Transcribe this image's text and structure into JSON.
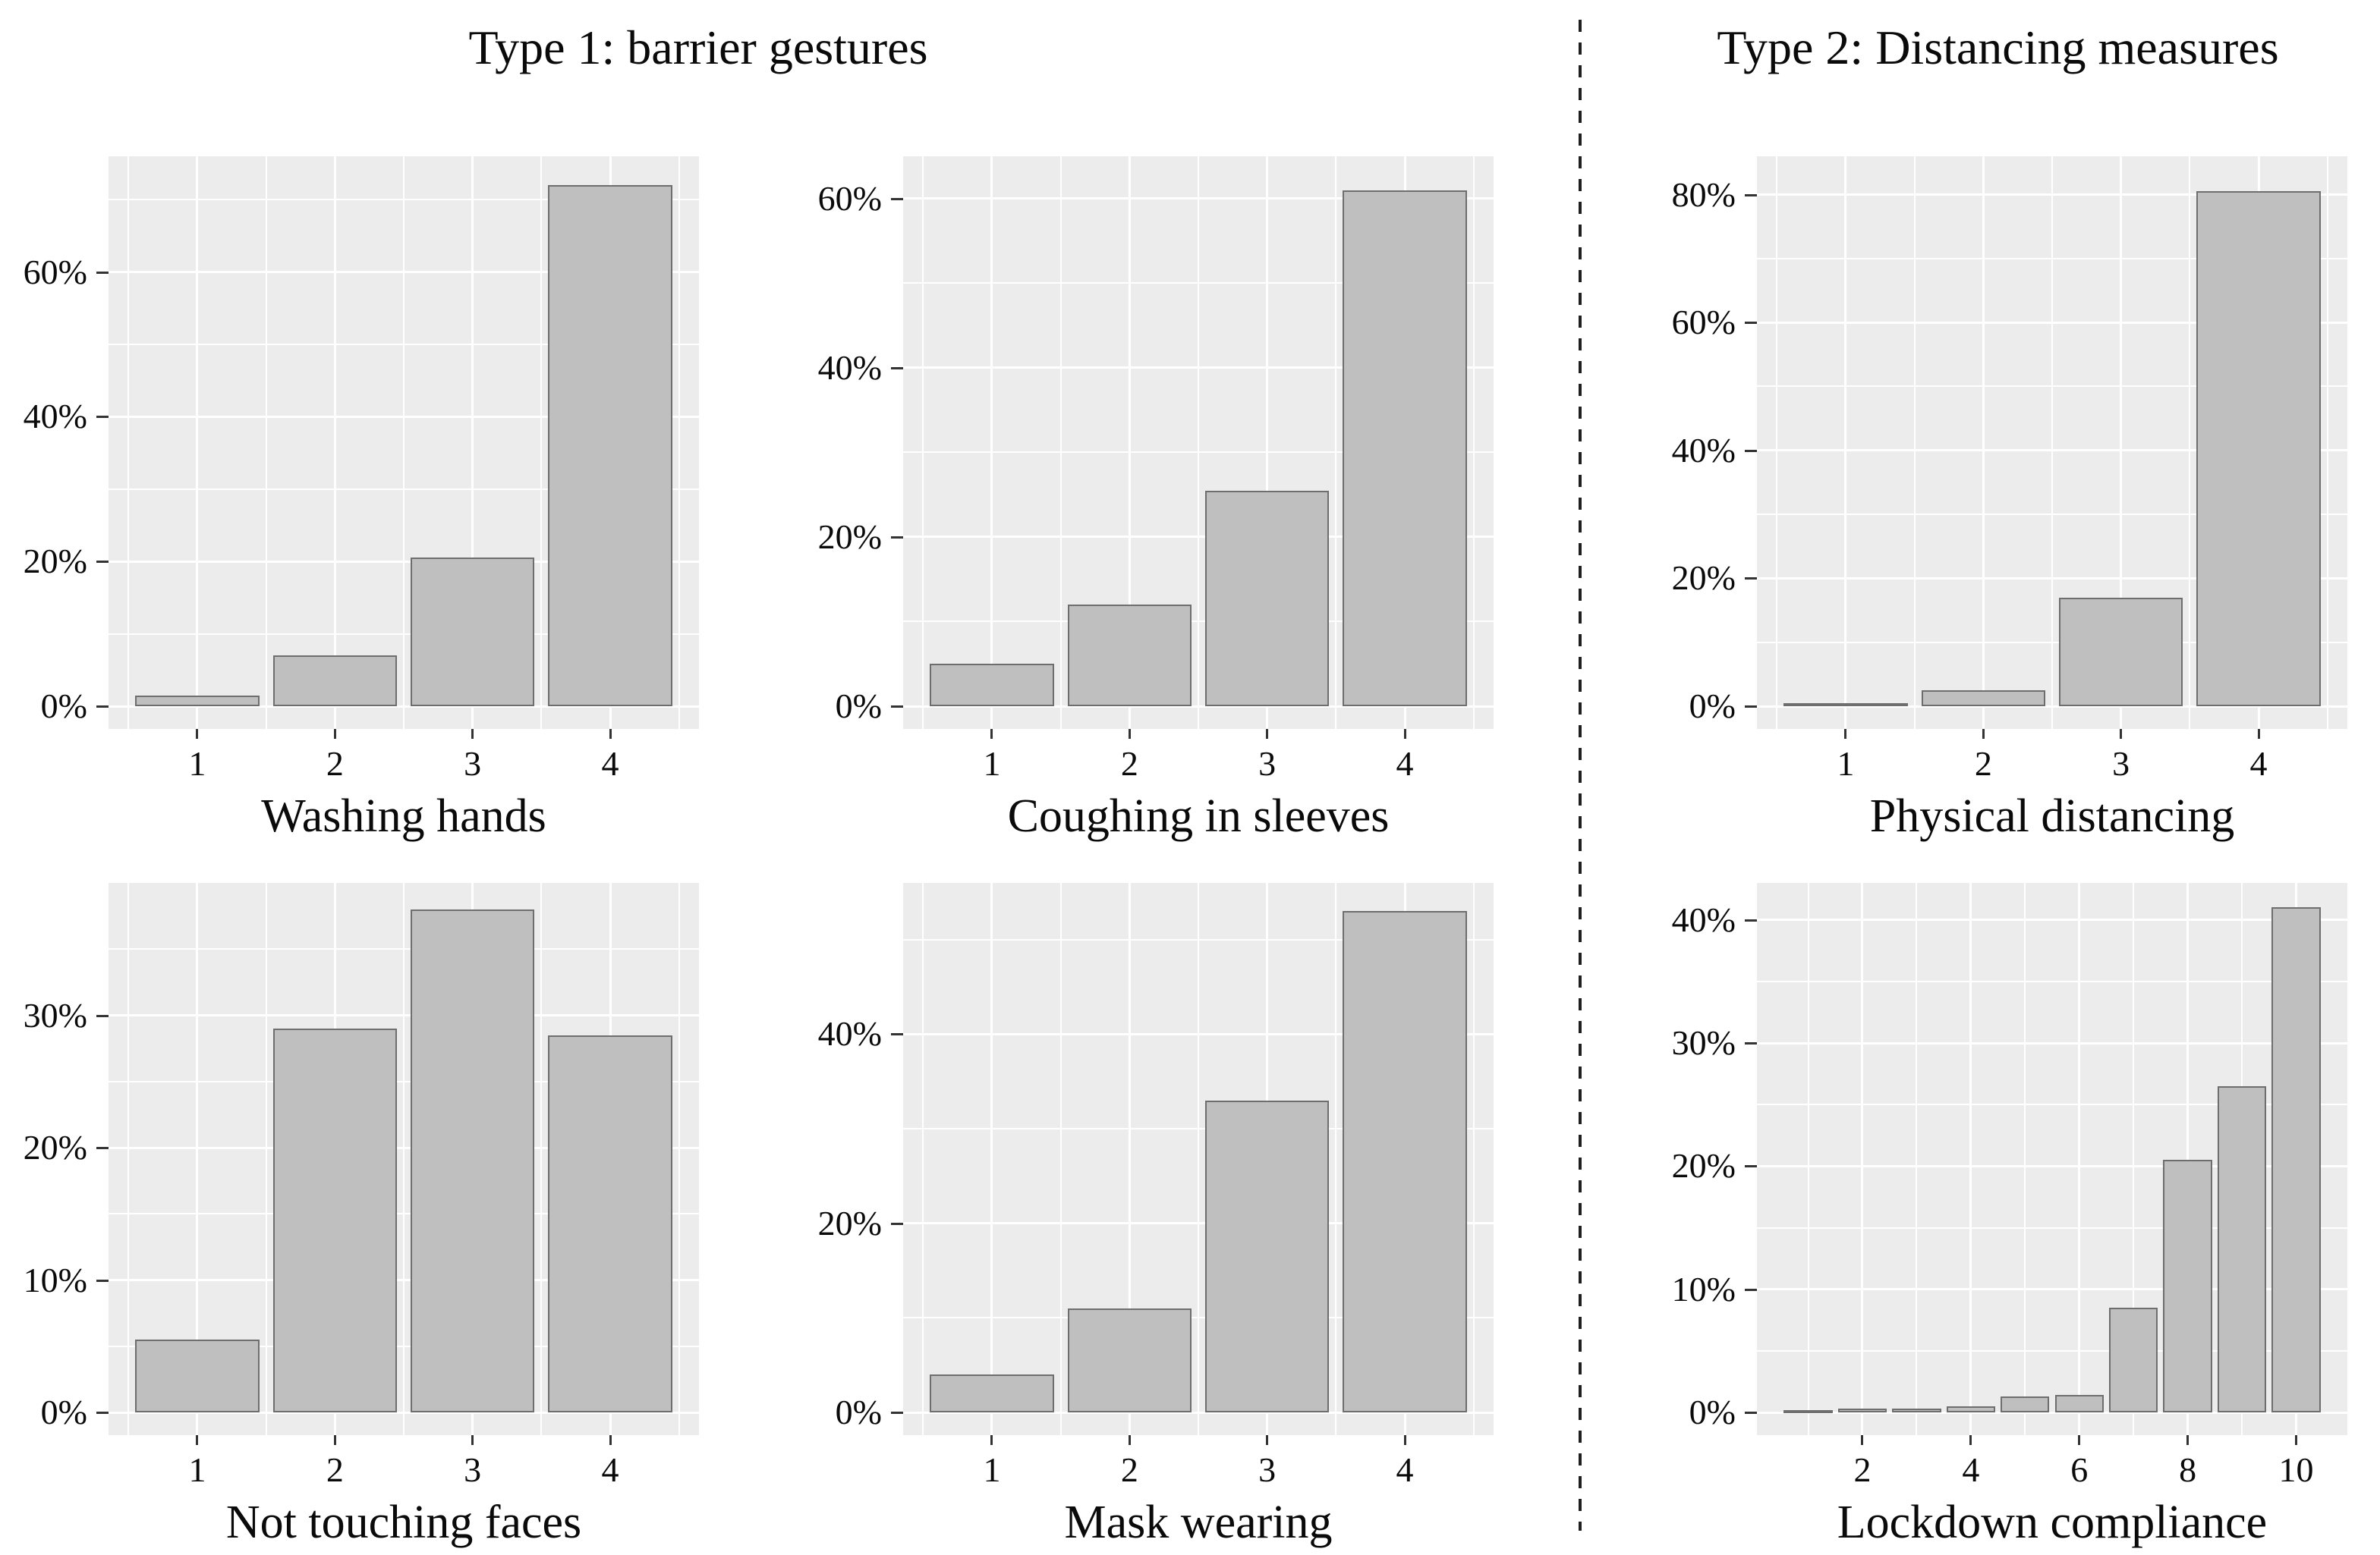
{
  "figure": {
    "kind": "survey histogram panel figure",
    "background": "#ffffff"
  },
  "group_headers": [
    {
      "label": "Type 1: barrier gestures"
    },
    {
      "label": "Type 2: Distancing measures"
    }
  ],
  "divider": {
    "style": "vertical-dashed",
    "color": "#1f1f1f"
  },
  "colors": {
    "panel_bg": "#ececec",
    "grid": "#ffffff",
    "bar_fill": "#bfbfbf",
    "bar_border": "#6e6e6e",
    "tick_mark": "#333333",
    "text": "#0a0a0a"
  },
  "chart_data": [
    {
      "type": "bar",
      "title": "Washing hands",
      "group": "Type 1: barrier gestures",
      "grid_pos": {
        "row": 0,
        "col": 0
      },
      "categories": [
        "1",
        "2",
        "3",
        "4"
      ],
      "values": [
        1.5,
        7,
        20.5,
        72
      ],
      "x_tick_labels": [
        "1",
        "2",
        "3",
        "4"
      ],
      "y_ticks": [
        0,
        20,
        40,
        60
      ],
      "y_tick_labels": [
        "0%",
        "20%",
        "40%",
        "60%"
      ],
      "ylim": [
        0,
        76
      ],
      "grid": true
    },
    {
      "type": "bar",
      "title": "Coughing in sleeves",
      "group": "Type 1: barrier gestures",
      "grid_pos": {
        "row": 0,
        "col": 1
      },
      "categories": [
        "1",
        "2",
        "3",
        "4"
      ],
      "values": [
        5,
        12,
        25.5,
        61
      ],
      "x_tick_labels": [
        "1",
        "2",
        "3",
        "4"
      ],
      "y_ticks": [
        0,
        20,
        40,
        60
      ],
      "y_tick_labels": [
        "0%",
        "20%",
        "40%",
        "60%"
      ],
      "ylim": [
        0,
        65
      ],
      "grid": true
    },
    {
      "type": "bar",
      "title": "Physical distancing",
      "group": "Type 2: Distancing measures",
      "grid_pos": {
        "row": 0,
        "col": 2
      },
      "categories": [
        "1",
        "2",
        "3",
        "4"
      ],
      "values": [
        0.5,
        2.5,
        17,
        80.5
      ],
      "x_tick_labels": [
        "1",
        "2",
        "3",
        "4"
      ],
      "y_ticks": [
        0,
        20,
        40,
        60,
        80
      ],
      "y_tick_labels": [
        "0%",
        "20%",
        "40%",
        "60%",
        "80%"
      ],
      "ylim": [
        0,
        86
      ],
      "grid": true
    },
    {
      "type": "bar",
      "title": "Not touching faces",
      "group": "Type 1: barrier gestures",
      "grid_pos": {
        "row": 1,
        "col": 0
      },
      "categories": [
        "1",
        "2",
        "3",
        "4"
      ],
      "values": [
        5.5,
        29,
        38,
        28.5
      ],
      "x_tick_labels": [
        "1",
        "2",
        "3",
        "4"
      ],
      "y_ticks": [
        0,
        10,
        20,
        30
      ],
      "y_tick_labels": [
        "0%",
        "10%",
        "20%",
        "30%"
      ],
      "ylim": [
        0,
        40
      ],
      "grid": true
    },
    {
      "type": "bar",
      "title": "Mask wearing",
      "group": "Type 1: barrier gestures",
      "grid_pos": {
        "row": 1,
        "col": 1
      },
      "categories": [
        "1",
        "2",
        "3",
        "4"
      ],
      "values": [
        4,
        11,
        33,
        53
      ],
      "x_tick_labels": [
        "1",
        "2",
        "3",
        "4"
      ],
      "y_ticks": [
        0,
        20,
        40
      ],
      "y_tick_labels": [
        "0%",
        "20%",
        "40%"
      ],
      "ylim": [
        0,
        56
      ],
      "grid": true
    },
    {
      "type": "bar",
      "title": "Lockdown compliance",
      "group": "Type 2: Distancing measures",
      "grid_pos": {
        "row": 1,
        "col": 2
      },
      "categories": [
        "1",
        "2",
        "3",
        "4",
        "5",
        "6",
        "7",
        "8",
        "9",
        "10"
      ],
      "values": [
        0.2,
        0.3,
        0.3,
        0.5,
        1.3,
        1.4,
        8.5,
        20.5,
        26.5,
        41
      ],
      "x_tick_labels": [
        "",
        "2",
        "",
        "4",
        "",
        "6",
        "",
        "8",
        "",
        "10"
      ],
      "y_ticks": [
        0,
        10,
        20,
        30,
        40
      ],
      "y_tick_labels": [
        "0%",
        "10%",
        "20%",
        "30%",
        "40%"
      ],
      "ylim": [
        0,
        43
      ],
      "grid": true
    }
  ]
}
